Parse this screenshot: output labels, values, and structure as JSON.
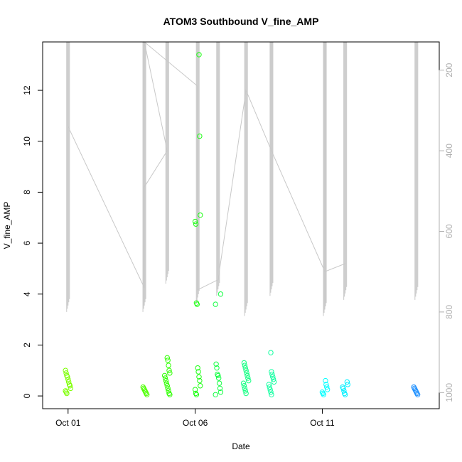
{
  "chart_data": {
    "type": "scatter",
    "title": "ATOM3 Southbound V_fine_AMP",
    "xlabel": "Date",
    "ylabel": "V_fine_AMP",
    "x_tick_labels": [
      "Oct 01",
      "Oct 06",
      "Oct 11"
    ],
    "x_tick_days": [
      1,
      6,
      11
    ],
    "xlim_days": [
      0.0,
      15.6
    ],
    "ylim": [
      -0.5,
      13.9
    ],
    "y_ticks": [
      0,
      2,
      4,
      6,
      8,
      10,
      12
    ],
    "y2_ticks": [
      200,
      400,
      600,
      800,
      1000
    ],
    "y2lim_reversed": [
      1040,
      130
    ],
    "grid": false,
    "colors": {
      "points_start": "#7cff00",
      "points_end": "#1e90ff",
      "depth_line": "#c8c8c8",
      "right_axis": "#b0b0b0"
    },
    "series": [
      {
        "x_day": 1.0,
        "y": [
          1.0,
          0.9,
          0.8,
          0.75,
          0.65,
          0.55,
          0.45,
          0.4,
          0.3,
          0.2,
          0.15,
          0.1
        ],
        "color": "#7cff00"
      },
      {
        "x_day": 4.0,
        "y": [
          0.35,
          0.3,
          0.25,
          0.2,
          0.15,
          0.1,
          0.05
        ],
        "color": "#4cff00"
      },
      {
        "x_day": 4.9,
        "y": [
          1.5,
          1.4,
          1.2,
          1.0,
          0.9,
          0.8,
          0.7,
          0.6,
          0.5,
          0.4,
          0.3,
          0.2,
          0.1,
          0.05
        ],
        "color": "#2eff00"
      },
      {
        "x_day": 6.1,
        "y": [
          13.4,
          10.2,
          7.1,
          6.85,
          6.75,
          3.65,
          3.6,
          1.1,
          0.95,
          0.75,
          0.6,
          0.4,
          0.25,
          0.1,
          0.05
        ],
        "color": "#1aff10"
      },
      {
        "x_day": 6.9,
        "y": [
          4.0,
          3.6,
          1.25,
          1.1,
          0.85,
          0.8,
          0.7,
          0.5,
          0.3,
          0.15,
          0.05
        ],
        "color": "#10ff40"
      },
      {
        "x_day": 8.0,
        "y": [
          1.3,
          1.2,
          1.1,
          1.0,
          0.9,
          0.8,
          0.7,
          0.6,
          0.5,
          0.4,
          0.3,
          0.2,
          0.1
        ],
        "color": "#10ff80"
      },
      {
        "x_day": 9.0,
        "y": [
          1.7,
          0.95,
          0.85,
          0.75,
          0.65,
          0.55,
          0.45,
          0.35,
          0.25,
          0.15,
          0.05
        ],
        "color": "#10ffa0"
      },
      {
        "x_day": 11.1,
        "y": [
          0.6,
          0.45,
          0.35,
          0.25,
          0.15,
          0.1,
          0.05
        ],
        "color": "#00ffff"
      },
      {
        "x_day": 11.9,
        "y": [
          0.55,
          0.45,
          0.35,
          0.3,
          0.2,
          0.1,
          0.05
        ],
        "color": "#00f0ff"
      },
      {
        "x_day": 14.7,
        "y": [
          0.35,
          0.3,
          0.25,
          0.2,
          0.15,
          0.1,
          0.05
        ],
        "color": "#1e90ff"
      }
    ],
    "depth_profiles": [
      {
        "x_day": 1.0,
        "min_depth": 130,
        "max_depth": 800
      },
      {
        "x_day": 4.0,
        "min_depth": 130,
        "max_depth": 800
      },
      {
        "x_day": 4.9,
        "min_depth": 130,
        "max_depth": 730
      },
      {
        "x_day": 6.1,
        "min_depth": 130,
        "max_depth": 780
      },
      {
        "x_day": 6.9,
        "min_depth": 130,
        "max_depth": 760
      },
      {
        "x_day": 8.0,
        "min_depth": 130,
        "max_depth": 810
      },
      {
        "x_day": 9.0,
        "min_depth": 130,
        "max_depth": 760
      },
      {
        "x_day": 11.1,
        "min_depth": 130,
        "max_depth": 810
      },
      {
        "x_day": 11.9,
        "min_depth": 130,
        "max_depth": 770
      },
      {
        "x_day": 14.7,
        "min_depth": 130,
        "max_depth": 770
      }
    ],
    "depth_transits": [
      [
        1.0,
        340
      ],
      [
        4.0,
        740
      ],
      [
        4.0,
        490
      ],
      [
        4.9,
        400
      ],
      [
        4.0,
        130
      ],
      [
        6.1,
        240
      ],
      [
        6.1,
        745
      ],
      [
        6.9,
        720
      ],
      [
        8.0,
        250
      ],
      [
        9.0,
        400
      ],
      [
        11.1,
        700
      ],
      [
        11.9,
        680
      ]
    ]
  }
}
